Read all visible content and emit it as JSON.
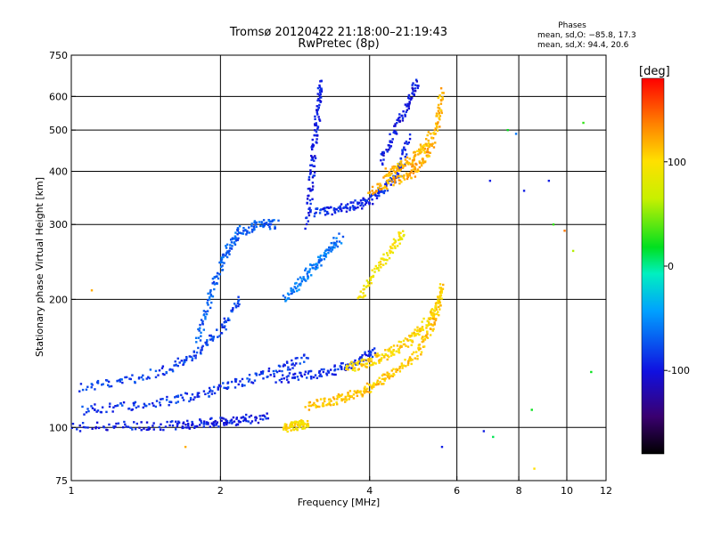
{
  "chart_data": {
    "type": "scatter",
    "title": "Tromsø 20120422 21:18:00–21:19:43",
    "subtitle": "RwPretec (8p)",
    "xlabel": "Frequency [MHz]",
    "ylabel": "Stationary phase Virtual Height [km]",
    "x_scale": "log",
    "y_scale": "log",
    "xlim": [
      1,
      12
    ],
    "ylim": [
      75,
      750
    ],
    "x_ticks": [
      1,
      2,
      4,
      6,
      8,
      10,
      12
    ],
    "x_tick_labels": [
      "1",
      "2",
      "4",
      "6",
      "8",
      "10",
      "12"
    ],
    "x_grid": [
      2,
      4,
      6,
      8,
      10
    ],
    "y_ticks": [
      75,
      100,
      200,
      300,
      400,
      500,
      600,
      750
    ],
    "y_tick_labels": [
      "75",
      "100",
      "200",
      "300",
      "400",
      "500",
      "600",
      "750"
    ],
    "y_grid": [
      100,
      200,
      300,
      400,
      500,
      600
    ],
    "grid": true,
    "phases_info": {
      "title": "Phases",
      "line1": "mean, sd,O: −85.8, 17.3",
      "line2": "mean, sd,X:  94.4, 20.6"
    },
    "colorbar": {
      "label": "[deg]",
      "range": [
        -180,
        180
      ],
      "ticks": [
        100,
        0,
        -100
      ],
      "tick_labels": [
        "100",
        "0",
        "-100"
      ]
    },
    "traces": [
      {
        "mode": "O",
        "phase_deg": -95,
        "x": [
          1.0,
          1.3,
          1.6,
          1.8,
          2.0,
          2.2,
          2.5
        ],
        "y": [
          100,
          101,
          101,
          102,
          103,
          104,
          106
        ]
      },
      {
        "mode": "O",
        "phase_deg": -85,
        "x": [
          1.05,
          1.3,
          1.6,
          1.9,
          2.2,
          2.6,
          3.0
        ],
        "y": [
          110,
          112,
          116,
          121,
          128,
          136,
          146
        ]
      },
      {
        "mode": "O",
        "phase_deg": -80,
        "x": [
          1.05,
          1.3,
          1.6,
          1.8,
          2.0,
          2.2
        ],
        "y": [
          124,
          129,
          138,
          150,
          170,
          200
        ]
      },
      {
        "mode": "O",
        "phase_deg": -70,
        "x": [
          1.8,
          1.9,
          2.0,
          2.1,
          2.2,
          2.4,
          2.6
        ],
        "y": [
          160,
          200,
          240,
          270,
          290,
          300,
          300
        ]
      },
      {
        "mode": "O",
        "phase_deg": -90,
        "x": [
          2.6,
          3.0,
          3.4,
          3.8,
          4.1
        ],
        "y": [
          130,
          132,
          136,
          142,
          152
        ]
      },
      {
        "mode": "O",
        "phase_deg": -95,
        "x": [
          3.0,
          3.05,
          3.1,
          3.15,
          3.2
        ],
        "y": [
          300,
          380,
          460,
          560,
          650
        ]
      },
      {
        "mode": "O",
        "phase_deg": -90,
        "x": [
          3.1,
          3.4,
          3.7,
          4.0,
          4.3,
          4.6,
          4.8
        ],
        "y": [
          320,
          325,
          332,
          340,
          365,
          400,
          480
        ]
      },
      {
        "mode": "O",
        "phase_deg": -100,
        "x": [
          4.2,
          4.5,
          4.8,
          5.0
        ],
        "y": [
          420,
          500,
          580,
          650
        ]
      },
      {
        "mode": "O",
        "phase_deg": -60,
        "x": [
          2.7,
          2.9,
          3.1,
          3.3,
          3.5
        ],
        "y": [
          200,
          220,
          240,
          260,
          280
        ]
      },
      {
        "mode": "X",
        "phase_deg": 100,
        "x": [
          2.7,
          2.8,
          2.9,
          3.0
        ],
        "y": [
          100,
          101,
          101,
          102
        ]
      },
      {
        "mode": "X",
        "phase_deg": 110,
        "x": [
          3.0,
          3.3,
          3.6,
          3.9,
          4.2,
          4.6,
          5.0,
          5.3,
          5.5
        ],
        "y": [
          112,
          115,
          118,
          122,
          128,
          137,
          150,
          170,
          190
        ]
      },
      {
        "mode": "X",
        "phase_deg": 105,
        "x": [
          3.6,
          3.9,
          4.2,
          4.5,
          4.9,
          5.2,
          5.5,
          5.6
        ],
        "y": [
          138,
          141,
          146,
          152,
          162,
          176,
          196,
          215
        ]
      },
      {
        "mode": "X",
        "phase_deg": 120,
        "x": [
          4.0,
          4.4,
          4.8,
          5.1,
          5.4
        ],
        "y": [
          360,
          375,
          390,
          420,
          470
        ]
      },
      {
        "mode": "X",
        "phase_deg": 115,
        "x": [
          4.3,
          4.6,
          4.9,
          5.2,
          5.5,
          5.6
        ],
        "y": [
          395,
          410,
          430,
          460,
          520,
          620
        ]
      },
      {
        "mode": "X",
        "phase_deg": 95,
        "x": [
          3.8,
          4.1,
          4.4,
          4.7
        ],
        "y": [
          200,
          230,
          260,
          290
        ]
      }
    ],
    "scattered_points": [
      {
        "x": 7.0,
        "y": 380,
        "phase_deg": -95
      },
      {
        "x": 7.1,
        "y": 95,
        "phase_deg": 10
      },
      {
        "x": 7.6,
        "y": 500,
        "phase_deg": 20
      },
      {
        "x": 7.9,
        "y": 490,
        "phase_deg": -60
      },
      {
        "x": 8.2,
        "y": 360,
        "phase_deg": -95
      },
      {
        "x": 8.5,
        "y": 110,
        "phase_deg": 20
      },
      {
        "x": 8.6,
        "y": 80,
        "phase_deg": 100
      },
      {
        "x": 9.2,
        "y": 380,
        "phase_deg": -95
      },
      {
        "x": 9.4,
        "y": 300,
        "phase_deg": 30
      },
      {
        "x": 9.9,
        "y": 290,
        "phase_deg": 140
      },
      {
        "x": 10.3,
        "y": 260,
        "phase_deg": 60
      },
      {
        "x": 10.8,
        "y": 520,
        "phase_deg": 30
      },
      {
        "x": 11.2,
        "y": 135,
        "phase_deg": 20
      },
      {
        "x": 6.8,
        "y": 98,
        "phase_deg": -95
      },
      {
        "x": 5.6,
        "y": 90,
        "phase_deg": -95
      },
      {
        "x": 1.7,
        "y": 90,
        "phase_deg": 120
      },
      {
        "x": 1.1,
        "y": 210,
        "phase_deg": 120
      }
    ]
  }
}
